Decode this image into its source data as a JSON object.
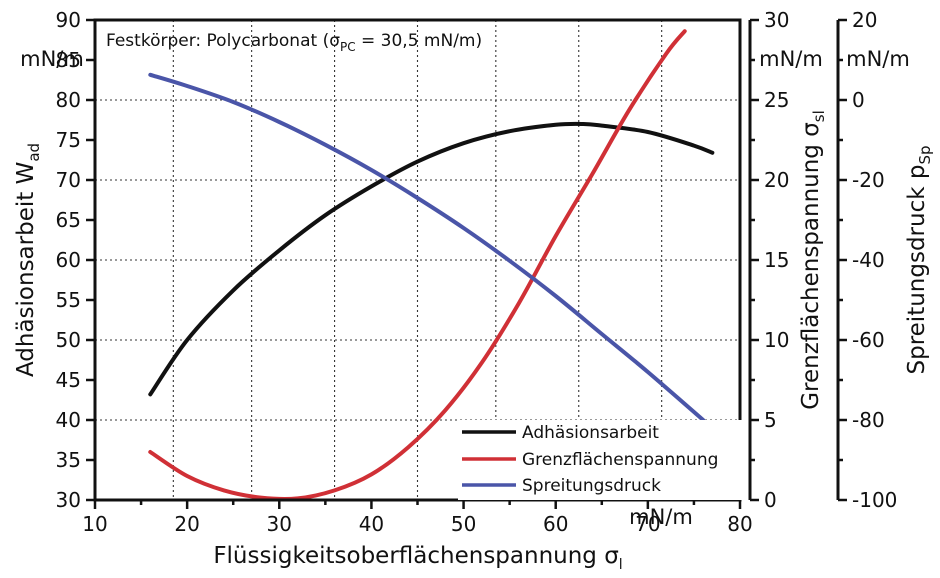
{
  "chart_data": {
    "type": "line",
    "annotation": "Festkörper: Polycarbonat (σ",
    "annotation_sub": "PC",
    "annotation_tail": " = 30,5 mN/m)",
    "xlabel": "Flüssigkeitsoberflächenspannung σ",
    "xlabel_sub": "l",
    "xunit": "mN/m",
    "xlim": [
      10,
      80
    ],
    "xticks": [
      "10",
      "20",
      "30",
      "40",
      "50",
      "60",
      "70",
      "80"
    ],
    "x_minor_grid": [
      18.5,
      27,
      36,
      45,
      53.5,
      62.5,
      71.5
    ],
    "axes": [
      {
        "id": "wad",
        "label": "Adhäsionsarbeit W",
        "label_sub": "ad",
        "unit": "mN/m",
        "range": [
          30,
          90
        ],
        "ticks": [
          "30",
          "35",
          "40",
          "45",
          "50",
          "55",
          "60",
          "65",
          "70",
          "75",
          "80",
          "85",
          "90"
        ]
      },
      {
        "id": "sigma_sl",
        "label": "Grenzflächenspannung σ",
        "label_sub": "sl",
        "unit": "mN/m",
        "range": [
          0,
          30
        ],
        "ticks": [
          "0",
          "5",
          "10",
          "15",
          "20",
          "25",
          "30"
        ]
      },
      {
        "id": "psp",
        "label": "Spreitungsdruck p",
        "label_sub": "Sp",
        "unit": "mN/m",
        "range": [
          -100,
          20
        ],
        "ticks": [
          "-100",
          "-80",
          "-60",
          "-40",
          "-20",
          "0",
          "20"
        ]
      }
    ],
    "series": [
      {
        "name": "Adhäsionsarbeit",
        "axis": "wad",
        "color": "#111111",
        "x": [
          16,
          20,
          25,
          30,
          35,
          40,
          45,
          50,
          55,
          60,
          63,
          65,
          70,
          75,
          77
        ],
        "y": [
          43.2,
          50.0,
          56.2,
          61.2,
          65.6,
          69.2,
          72.3,
          74.6,
          76.1,
          76.9,
          77.0,
          76.8,
          76.0,
          74.3,
          73.4
        ]
      },
      {
        "name": "Grenzflächenspannung",
        "axis": "sigma_sl",
        "color": "#d03036",
        "x": [
          16,
          20,
          24,
          28,
          32,
          36,
          40,
          44,
          48,
          52,
          56,
          60,
          64,
          68,
          72,
          74
        ],
        "y": [
          3.0,
          1.5,
          0.6,
          0.15,
          0.1,
          0.6,
          1.6,
          3.3,
          5.6,
          8.6,
          12.3,
          16.5,
          20.4,
          24.4,
          27.9,
          29.3
        ]
      },
      {
        "name": "Spreitungsdruck",
        "axis": "psp",
        "color": "#4a55a8",
        "x": [
          16,
          20,
          25,
          30,
          35,
          40,
          45,
          50,
          55,
          60,
          65,
          70,
          76
        ],
        "y": [
          6.3,
          3.5,
          -0.5,
          -5.5,
          -11.2,
          -17.5,
          -24.5,
          -32.0,
          -40.2,
          -49.0,
          -58.5,
          -68.0,
          -80.0
        ]
      }
    ],
    "legend": {
      "position": "bottom-right",
      "entries": [
        "Adhäsionsarbeit",
        "Grenzflächenspannung",
        "Spreitungsdruck"
      ]
    },
    "grid": true
  }
}
